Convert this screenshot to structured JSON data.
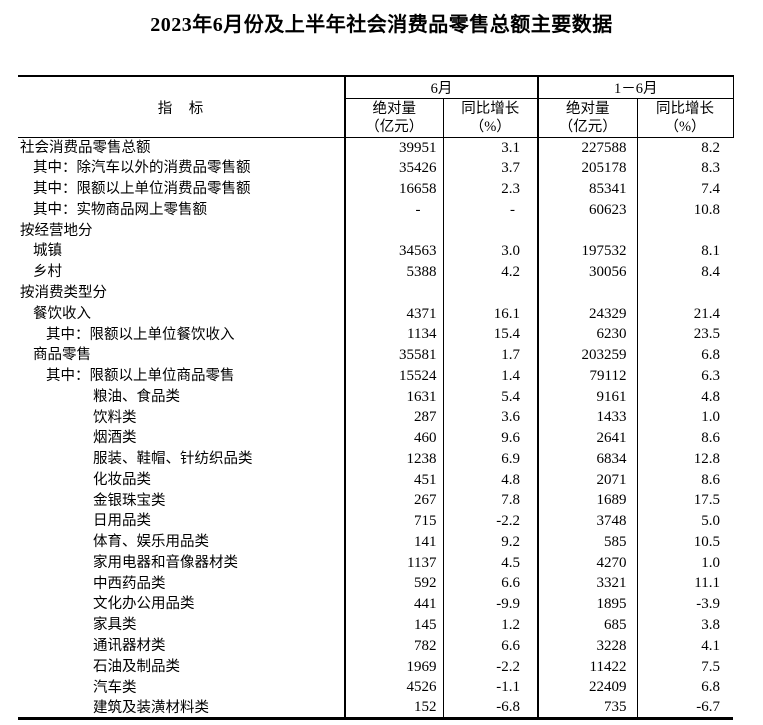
{
  "page": {
    "title": "2023年6月份及上半年社会消费品零售总额主要数据"
  },
  "colors": {
    "text": "#000000",
    "border": "#000000",
    "background": "#ffffff"
  },
  "table": {
    "columns": {
      "indicator": "指　标",
      "june": "6月",
      "half_year": "1－6月",
      "abs_label": "绝对量",
      "abs_unit": "（亿元）",
      "yoy_label": "同比增长",
      "yoy_unit": "（%）"
    },
    "rows": [
      {
        "label": "社会消费品零售总额",
        "indent": 0,
        "values": [
          "39951",
          "3.1",
          "227588",
          "8.2"
        ]
      },
      {
        "label": "其中：除汽车以外的消费品零售额",
        "indent": 1,
        "values": [
          "35426",
          "3.7",
          "205178",
          "8.3"
        ]
      },
      {
        "label": "其中：限额以上单位消费品零售额",
        "indent": 1,
        "values": [
          "16658",
          "2.3",
          "85341",
          "7.4"
        ]
      },
      {
        "label": "其中：实物商品网上零售额",
        "indent": 1,
        "values": [
          "-",
          "-",
          "60623",
          "10.8"
        ]
      },
      {
        "label": "按经营地分",
        "indent": 0,
        "values": [
          "",
          "",
          "",
          ""
        ]
      },
      {
        "label": "城镇",
        "indent": 1,
        "values": [
          "34563",
          "3.0",
          "197532",
          "8.1"
        ]
      },
      {
        "label": "乡村",
        "indent": 1,
        "values": [
          "5388",
          "4.2",
          "30056",
          "8.4"
        ]
      },
      {
        "label": "按消费类型分",
        "indent": 0,
        "values": [
          "",
          "",
          "",
          ""
        ]
      },
      {
        "label": "餐饮收入",
        "indent": 1,
        "values": [
          "4371",
          "16.1",
          "24329",
          "21.4"
        ]
      },
      {
        "label": "其中：限额以上单位餐饮收入",
        "indent": 2,
        "values": [
          "1134",
          "15.4",
          "6230",
          "23.5"
        ]
      },
      {
        "label": "商品零售",
        "indent": 1,
        "values": [
          "35581",
          "1.7",
          "203259",
          "6.8"
        ]
      },
      {
        "label": "其中：限额以上单位商品零售",
        "indent": 2,
        "values": [
          "15524",
          "1.4",
          "79112",
          "6.3"
        ]
      },
      {
        "label": "粮油、食品类",
        "indent": 3,
        "values": [
          "1631",
          "5.4",
          "9161",
          "4.8"
        ]
      },
      {
        "label": "饮料类",
        "indent": 3,
        "values": [
          "287",
          "3.6",
          "1433",
          "1.0"
        ]
      },
      {
        "label": "烟酒类",
        "indent": 3,
        "values": [
          "460",
          "9.6",
          "2641",
          "8.6"
        ]
      },
      {
        "label": "服装、鞋帽、针纺织品类",
        "indent": 3,
        "values": [
          "1238",
          "6.9",
          "6834",
          "12.8"
        ]
      },
      {
        "label": "化妆品类",
        "indent": 3,
        "values": [
          "451",
          "4.8",
          "2071",
          "8.6"
        ]
      },
      {
        "label": "金银珠宝类",
        "indent": 3,
        "values": [
          "267",
          "7.8",
          "1689",
          "17.5"
        ]
      },
      {
        "label": "日用品类",
        "indent": 3,
        "values": [
          "715",
          "-2.2",
          "3748",
          "5.0"
        ]
      },
      {
        "label": "体育、娱乐用品类",
        "indent": 3,
        "values": [
          "141",
          "9.2",
          "585",
          "10.5"
        ]
      },
      {
        "label": "家用电器和音像器材类",
        "indent": 3,
        "values": [
          "1137",
          "4.5",
          "4270",
          "1.0"
        ]
      },
      {
        "label": "中西药品类",
        "indent": 3,
        "values": [
          "592",
          "6.6",
          "3321",
          "11.1"
        ]
      },
      {
        "label": "文化办公用品类",
        "indent": 3,
        "values": [
          "441",
          "-9.9",
          "1895",
          "-3.9"
        ]
      },
      {
        "label": "家具类",
        "indent": 3,
        "values": [
          "145",
          "1.2",
          "685",
          "3.8"
        ]
      },
      {
        "label": "通讯器材类",
        "indent": 3,
        "values": [
          "782",
          "6.6",
          "3228",
          "4.1"
        ]
      },
      {
        "label": "石油及制品类",
        "indent": 3,
        "values": [
          "1969",
          "-2.2",
          "11422",
          "7.5"
        ]
      },
      {
        "label": "汽车类",
        "indent": 3,
        "values": [
          "4526",
          "-1.1",
          "22409",
          "6.8"
        ]
      },
      {
        "label": "建筑及装潢材料类",
        "indent": 3,
        "values": [
          "152",
          "-6.8",
          "735",
          "-6.7"
        ]
      }
    ]
  }
}
